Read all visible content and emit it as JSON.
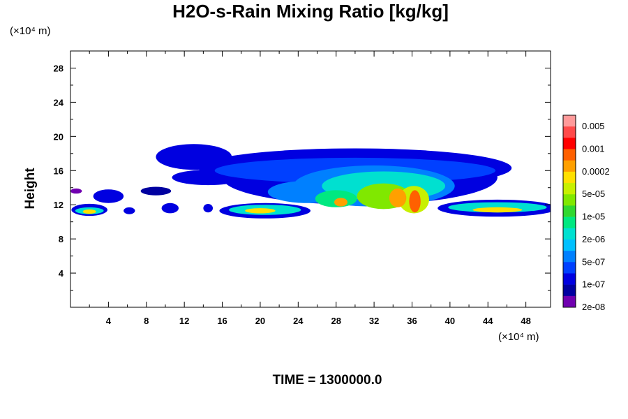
{
  "chart_data": {
    "type": "heatmap",
    "title": "H2O-s-Rain Mixing Ratio [kg/kg]",
    "xlabel": "",
    "ylabel": "Height",
    "x_unit": "(×10⁴ m)",
    "y_unit": "(×10⁴ m)",
    "xlim": [
      0,
      50.6
    ],
    "ylim": [
      0,
      30
    ],
    "x_ticks": [
      "4",
      "8",
      "12",
      "16",
      "20",
      "24",
      "28",
      "32",
      "36",
      "40",
      "44",
      "48"
    ],
    "y_ticks": [
      "4",
      "8",
      "12",
      "16",
      "20",
      "24",
      "28"
    ],
    "colorbar": {
      "labels": [
        "0.005",
        "0.001",
        "0.0002",
        "5e-05",
        "1e-05",
        "2e-06",
        "5e-07",
        "1e-07",
        "2e-08"
      ],
      "colors": [
        "#ff9a9a",
        "#ff4a4a",
        "#ff0000",
        "#ff6000",
        "#ffa000",
        "#ffe000",
        "#c8f000",
        "#80e800",
        "#30d830",
        "#00e880",
        "#00e0d0",
        "#00c0ff",
        "#0080ff",
        "#0040ff",
        "#0000e0",
        "#0000a0",
        "#7000b0"
      ]
    },
    "footer": "TIME = 1300000.0",
    "blobs": [
      {
        "x": 13,
        "y": 17.6,
        "rx": 4.0,
        "ry": 1.5,
        "level": 2
      },
      {
        "x": 30,
        "y": 16.3,
        "rx": 16.5,
        "ry": 2.3,
        "level": 2
      },
      {
        "x": 30.5,
        "y": 15.2,
        "rx": 14.5,
        "ry": 3.2,
        "level": 2
      },
      {
        "x": 14.5,
        "y": 15.2,
        "rx": 3.8,
        "ry": 0.9,
        "level": 2
      },
      {
        "x": 4,
        "y": 13.0,
        "rx": 1.6,
        "ry": 0.8,
        "level": 2
      },
      {
        "x": 9,
        "y": 13.6,
        "rx": 1.6,
        "ry": 0.5,
        "level": 1
      },
      {
        "x": 0.6,
        "y": 13.6,
        "rx": 0.6,
        "ry": 0.3,
        "level": 0
      },
      {
        "x": 2,
        "y": 11.4,
        "rx": 1.9,
        "ry": 0.7,
        "level": 2
      },
      {
        "x": 6.2,
        "y": 11.3,
        "rx": 0.6,
        "ry": 0.4,
        "level": 2
      },
      {
        "x": 10.5,
        "y": 11.6,
        "rx": 0.9,
        "ry": 0.6,
        "level": 2
      },
      {
        "x": 14.5,
        "y": 11.6,
        "rx": 0.5,
        "ry": 0.5,
        "level": 2
      },
      {
        "x": 20.5,
        "y": 11.3,
        "rx": 4.8,
        "ry": 0.9,
        "level": 2
      },
      {
        "x": 45,
        "y": 11.6,
        "rx": 6.3,
        "ry": 1.0,
        "level": 2
      },
      {
        "x": 30,
        "y": 16.0,
        "rx": 14.8,
        "ry": 1.5,
        "level": 3
      },
      {
        "x": 32,
        "y": 14.2,
        "rx": 8.5,
        "ry": 2.4,
        "level": 4
      },
      {
        "x": 25,
        "y": 13.5,
        "rx": 4.2,
        "ry": 1.3,
        "level": 4
      },
      {
        "x": 2,
        "y": 11.3,
        "rx": 1.5,
        "ry": 0.4,
        "level": 6
      },
      {
        "x": 20.5,
        "y": 11.4,
        "rx": 3.8,
        "ry": 0.6,
        "level": 6
      },
      {
        "x": 45,
        "y": 11.7,
        "rx": 5.2,
        "ry": 0.6,
        "level": 6
      },
      {
        "x": 33,
        "y": 14.2,
        "rx": 6.5,
        "ry": 1.7,
        "level": 6
      },
      {
        "x": 28,
        "y": 12.7,
        "rx": 2.2,
        "ry": 1.0,
        "level": 7
      },
      {
        "x": 33,
        "y": 13.0,
        "rx": 2.8,
        "ry": 1.5,
        "level": 9
      },
      {
        "x": 36.2,
        "y": 12.6,
        "rx": 1.6,
        "ry": 1.6,
        "level": 10
      },
      {
        "x": 34.5,
        "y": 12.8,
        "rx": 0.9,
        "ry": 1.1,
        "level": 12
      },
      {
        "x": 36.3,
        "y": 12.4,
        "rx": 0.6,
        "ry": 1.3,
        "level": 13
      },
      {
        "x": 28.5,
        "y": 12.3,
        "rx": 0.7,
        "ry": 0.5,
        "level": 12
      },
      {
        "x": 45,
        "y": 11.4,
        "rx": 2.6,
        "ry": 0.3,
        "level": 11
      },
      {
        "x": 20,
        "y": 11.3,
        "rx": 1.6,
        "ry": 0.3,
        "level": 11
      },
      {
        "x": 2,
        "y": 11.2,
        "rx": 0.7,
        "ry": 0.25,
        "level": 11
      }
    ]
  }
}
